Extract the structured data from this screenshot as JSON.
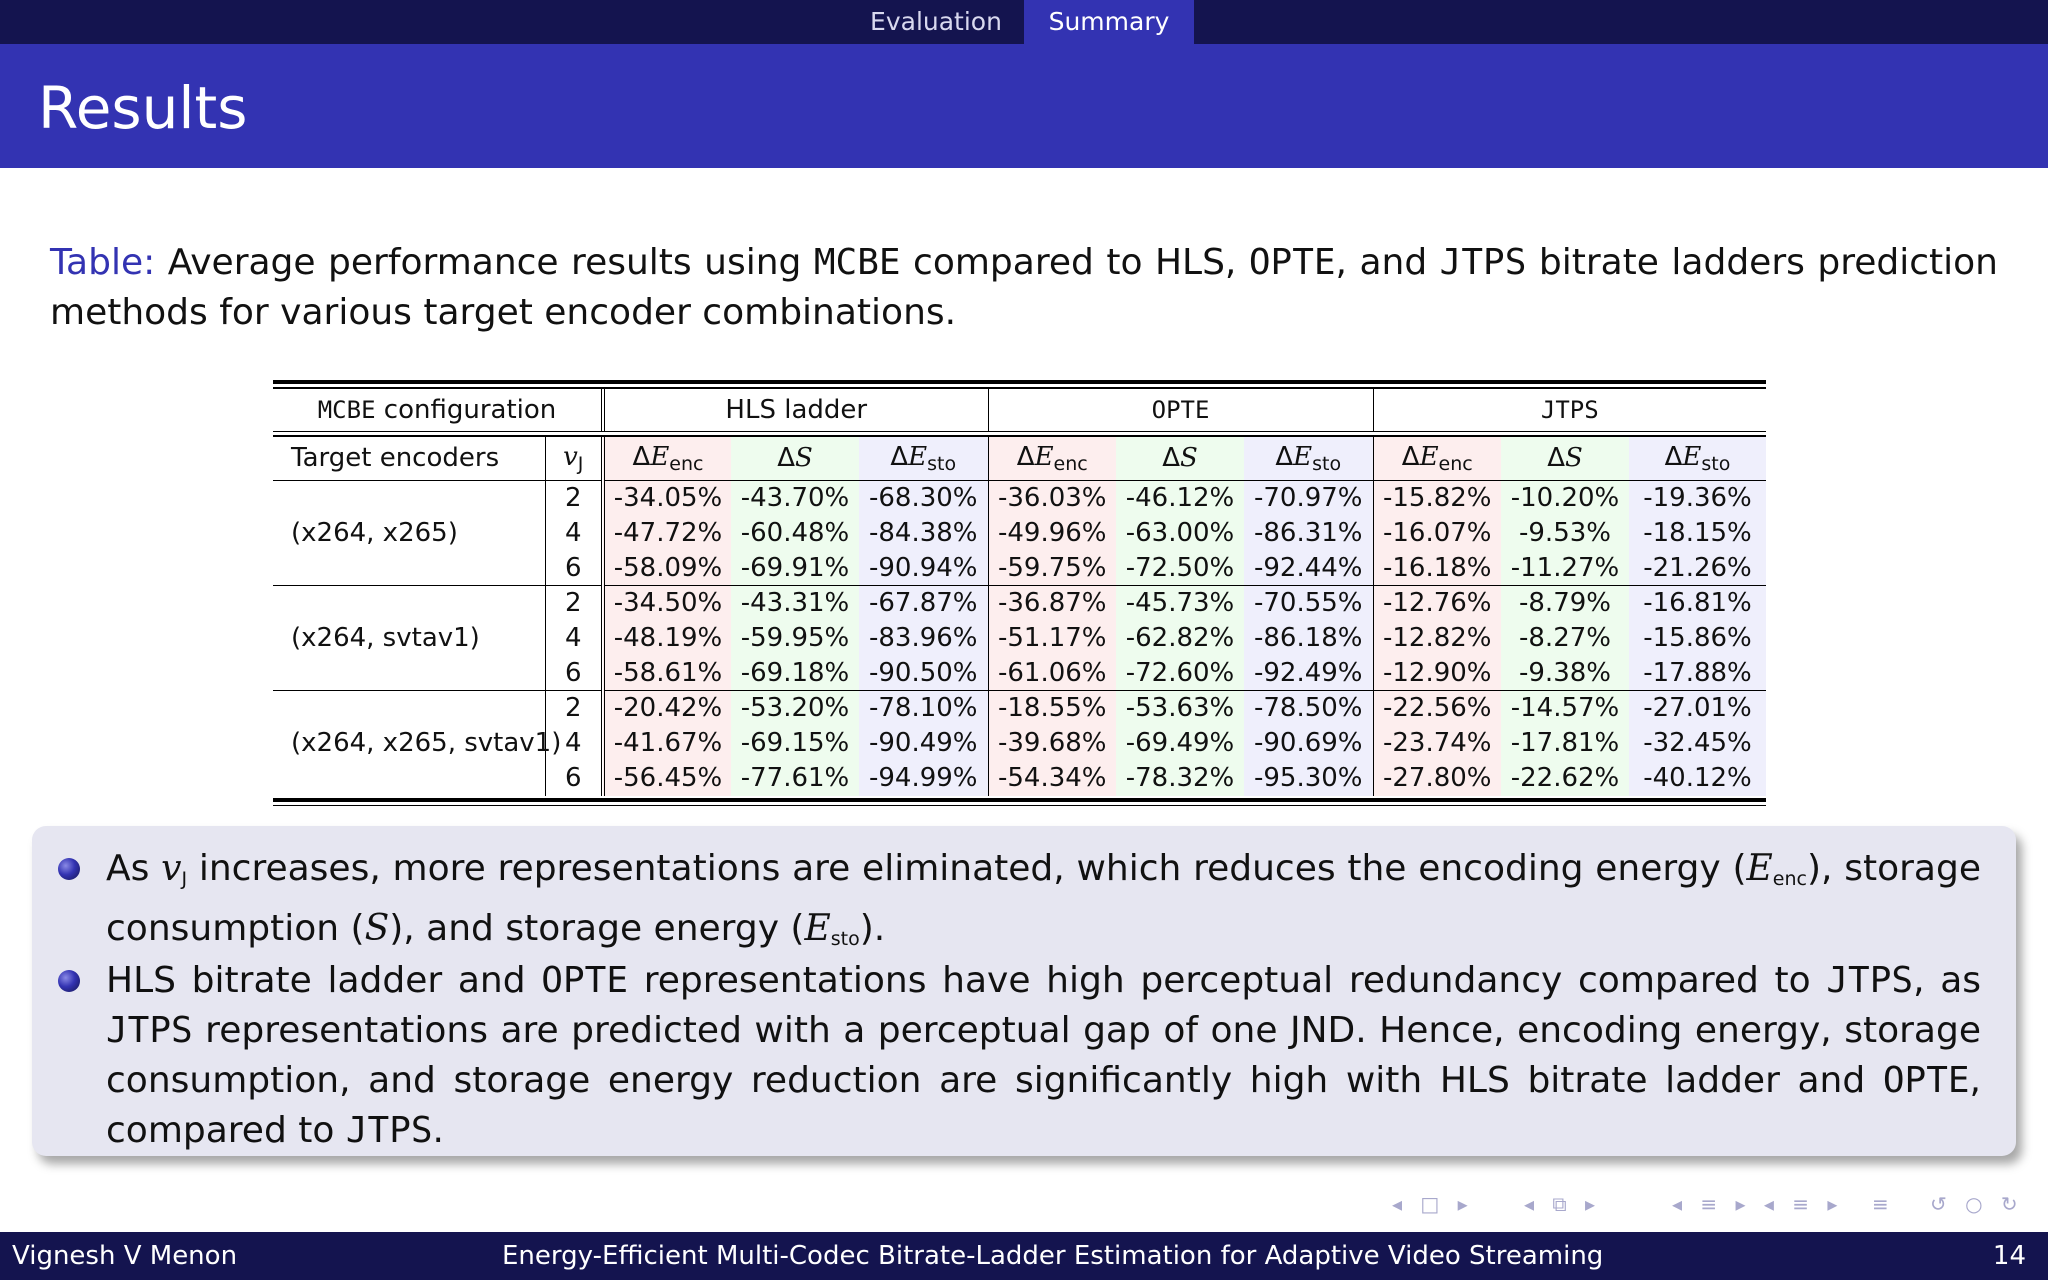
{
  "nav": {
    "items": [
      "Evaluation",
      "Summary"
    ]
  },
  "slide": {
    "title": "Results"
  },
  "caption": {
    "label": "Table:",
    "parts": [
      "Average performance results using ",
      "MCBE",
      " compared to HLS, ",
      "OPTE",
      ", and ",
      "JTPS",
      " bitrate ladders prediction methods for various target encoder combinations."
    ]
  },
  "table": {
    "header1": {
      "config": "MCBE configuration",
      "groups": [
        "HLS ladder",
        "OPTE",
        "JTPS"
      ]
    },
    "header2": {
      "encoders": "Target encoders",
      "vj": "v",
      "vj_sub": "J",
      "dE": "ΔE",
      "enc_sub": "enc",
      "dS": "ΔS",
      "sto_sub": "sto"
    },
    "groups": [
      {
        "name": "(x264, x265)",
        "rows": [
          {
            "vj": "2",
            "values": [
              "-34.05%",
              "-43.70%",
              "-68.30%",
              "-36.03%",
              "-46.12%",
              "-70.97%",
              "-15.82%",
              "-10.20%",
              "-19.36%"
            ]
          },
          {
            "vj": "4",
            "values": [
              "-47.72%",
              "-60.48%",
              "-84.38%",
              "-49.96%",
              "-63.00%",
              "-86.31%",
              "-16.07%",
              "-9.53%",
              "-18.15%"
            ]
          },
          {
            "vj": "6",
            "values": [
              "-58.09%",
              "-69.91%",
              "-90.94%",
              "-59.75%",
              "-72.50%",
              "-92.44%",
              "-16.18%",
              "-11.27%",
              "-21.26%"
            ]
          }
        ]
      },
      {
        "name": "(x264, svtav1)",
        "rows": [
          {
            "vj": "2",
            "values": [
              "-34.50%",
              "-43.31%",
              "-67.87%",
              "-36.87%",
              "-45.73%",
              "-70.55%",
              "-12.76%",
              "-8.79%",
              "-16.81%"
            ]
          },
          {
            "vj": "4",
            "values": [
              "-48.19%",
              "-59.95%",
              "-83.96%",
              "-51.17%",
              "-62.82%",
              "-86.18%",
              "-12.82%",
              "-8.27%",
              "-15.86%"
            ]
          },
          {
            "vj": "6",
            "values": [
              "-58.61%",
              "-69.18%",
              "-90.50%",
              "-61.06%",
              "-72.60%",
              "-92.49%",
              "-12.90%",
              "-9.38%",
              "-17.88%"
            ]
          }
        ]
      },
      {
        "name": "(x264, x265, svtav1)",
        "rows": [
          {
            "vj": "2",
            "values": [
              "-20.42%",
              "-53.20%",
              "-78.10%",
              "-18.55%",
              "-53.63%",
              "-78.50%",
              "-22.56%",
              "-14.57%",
              "-27.01%"
            ]
          },
          {
            "vj": "4",
            "values": [
              "-41.67%",
              "-69.15%",
              "-90.49%",
              "-39.68%",
              "-69.49%",
              "-90.69%",
              "-23.74%",
              "-17.81%",
              "-32.45%"
            ]
          },
          {
            "vj": "6",
            "values": [
              "-56.45%",
              "-77.61%",
              "-94.99%",
              "-54.34%",
              "-78.32%",
              "-95.30%",
              "-27.80%",
              "-22.62%",
              "-40.12%"
            ]
          }
        ]
      }
    ]
  },
  "bullets": {
    "b1": [
      "As ",
      "v",
      "J",
      " increases, more representations are eliminated, which reduces the encoding energy (",
      "E",
      "enc",
      "), storage consumption (",
      "S",
      "), and storage energy (",
      "E",
      "sto",
      ")."
    ],
    "b2": [
      "HLS bitrate ladder and ",
      "OPTE",
      " representations have high perceptual redundancy compared to ",
      "JTPS",
      ", as ",
      "JTPS",
      " representations are predicted with a perceptual gap of one JND. Hence, encoding energy, storage consumption, and storage energy reduction are significantly high with HLS bitrate ladder and ",
      "OPTE",
      ", compared to ",
      "JTPS",
      "."
    ]
  },
  "footer": {
    "author": "Vignesh V Menon",
    "title": "Energy-Efficient Multi-Codec Bitrate-Ladder Estimation for Adaptive Video Streaming",
    "page": "14"
  },
  "colors": {
    "nav_bg": "#14144f",
    "title_bg": "#3333b2",
    "box_bg": "#e6e6f1",
    "enc_col": "#fdeeee",
    "s_col": "#eefcee",
    "sto_col": "#efeffc"
  },
  "icons": [
    "beamer-nav-frame-icon",
    "beamer-nav-subsection-icon",
    "beamer-nav-section-icon",
    "beamer-nav-search-icon"
  ]
}
